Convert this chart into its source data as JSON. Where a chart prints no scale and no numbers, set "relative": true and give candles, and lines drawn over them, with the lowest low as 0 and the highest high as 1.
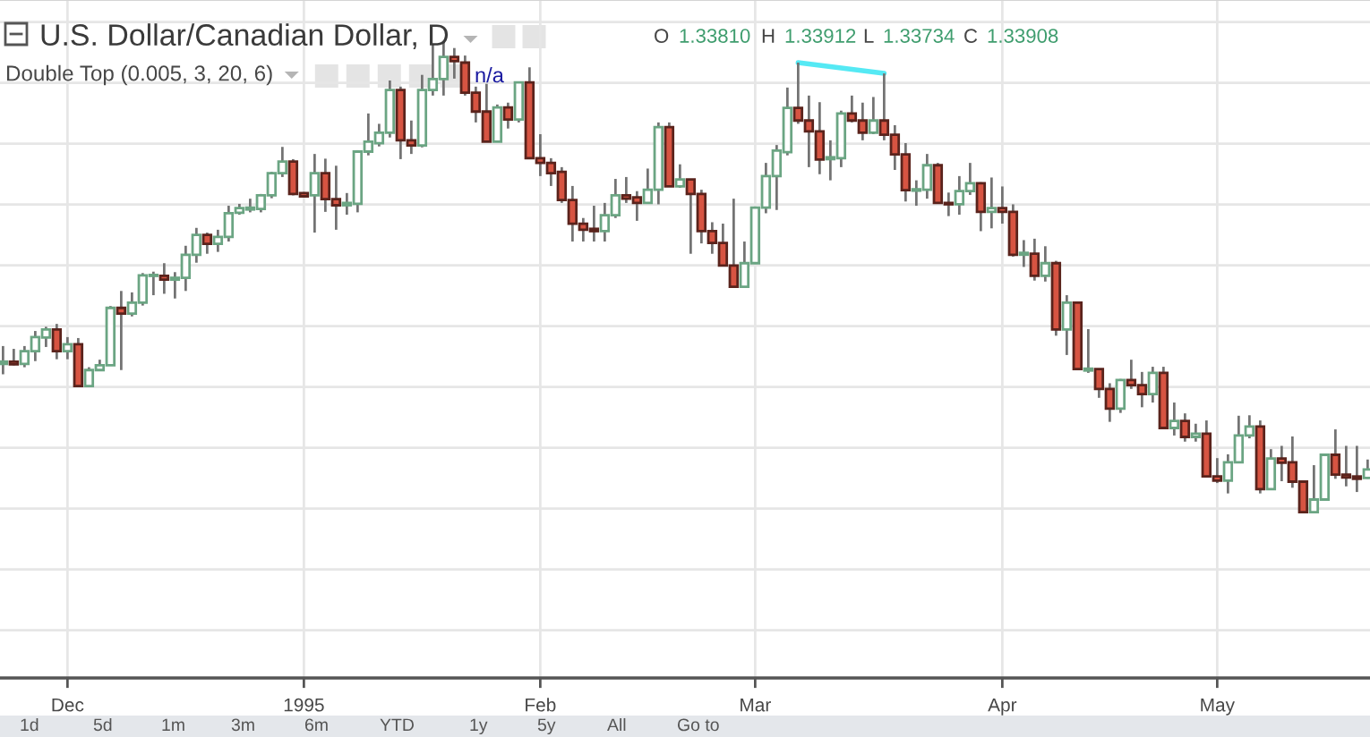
{
  "chart_data": {
    "type": "candlestick",
    "title": "U.S. Dollar/Canadian Dollar, D",
    "subtitle": "Double Top (0.005, 3, 20, 6)",
    "relative": true,
    "categories": [
      null,
      null,
      null,
      null,
      null,
      null,
      "Dec",
      null,
      null,
      null,
      null,
      null,
      null,
      null,
      null,
      null,
      null,
      null,
      null,
      null,
      null,
      null,
      null,
      null,
      null,
      null,
      null,
      null,
      "1995",
      null,
      null,
      null,
      null,
      null,
      null,
      null,
      null,
      null,
      null,
      null,
      null,
      null,
      null,
      null,
      null,
      null,
      null,
      null,
      null,
      null,
      "Feb",
      null,
      null,
      null,
      null,
      null,
      null,
      null,
      null,
      null,
      null,
      null,
      null,
      null,
      null,
      null,
      null,
      null,
      null,
      null,
      "Mar",
      null,
      null,
      null,
      null,
      null,
      null,
      null,
      null,
      null,
      null,
      null,
      null,
      null,
      null,
      null,
      null,
      null,
      null,
      null,
      null,
      null,
      null,
      "Apr",
      null,
      null,
      null,
      null,
      null,
      null,
      null,
      null,
      null,
      null,
      null,
      null,
      null,
      null,
      null,
      null,
      null,
      null,
      null,
      "May",
      null,
      null,
      null,
      null,
      null,
      null,
      null,
      null,
      null,
      null,
      null,
      null,
      null,
      null
    ],
    "ohlc": [
      [
        0.315,
        0.353,
        0.293,
        0.32
      ],
      [
        0.32,
        0.347,
        0.312,
        0.314
      ],
      [
        0.315,
        0.353,
        0.308,
        0.342
      ],
      [
        0.342,
        0.385,
        0.321,
        0.372
      ],
      [
        0.371,
        0.394,
        0.351,
        0.388
      ],
      [
        0.388,
        0.4,
        0.325,
        0.342
      ],
      [
        0.342,
        0.372,
        0.325,
        0.357
      ],
      [
        0.357,
        0.37,
        0.267,
        0.268
      ],
      [
        0.268,
        0.308,
        0.268,
        0.302
      ],
      [
        0.302,
        0.324,
        0.3,
        0.312
      ],
      [
        0.312,
        0.438,
        0.312,
        0.434
      ],
      [
        0.434,
        0.47,
        0.302,
        0.422
      ],
      [
        0.422,
        0.467,
        0.416,
        0.445
      ],
      [
        0.445,
        0.508,
        0.439,
        0.503
      ],
      [
        0.502,
        0.511,
        0.461,
        0.504
      ],
      [
        0.502,
        0.529,
        0.464,
        0.494
      ],
      [
        0.494,
        0.51,
        0.454,
        0.498
      ],
      [
        0.498,
        0.566,
        0.47,
        0.547
      ],
      [
        0.547,
        0.604,
        0.53,
        0.589
      ],
      [
        0.589,
        0.594,
        0.549,
        0.57
      ],
      [
        0.57,
        0.6,
        0.553,
        0.585
      ],
      [
        0.585,
        0.651,
        0.575,
        0.635
      ],
      [
        0.636,
        0.655,
        0.632,
        0.646
      ],
      [
        0.643,
        0.666,
        0.637,
        0.647
      ],
      [
        0.644,
        0.676,
        0.637,
        0.673
      ],
      [
        0.673,
        0.723,
        0.667,
        0.72
      ],
      [
        0.72,
        0.776,
        0.712,
        0.745
      ],
      [
        0.745,
        0.75,
        0.673,
        0.676
      ],
      [
        0.678,
        0.68,
        0.67,
        0.671
      ],
      [
        0.673,
        0.761,
        0.594,
        0.72
      ],
      [
        0.72,
        0.751,
        0.638,
        0.665
      ],
      [
        0.665,
        0.736,
        0.6,
        0.652
      ],
      [
        0.652,
        0.678,
        0.632,
        0.657
      ],
      [
        0.655,
        0.769,
        0.637,
        0.766
      ],
      [
        0.766,
        0.847,
        0.758,
        0.787
      ],
      [
        0.784,
        0.825,
        0.777,
        0.806
      ],
      [
        0.806,
        0.917,
        0.796,
        0.897
      ],
      [
        0.897,
        0.904,
        0.75,
        0.79
      ],
      [
        0.79,
        0.832,
        0.761,
        0.779
      ],
      [
        0.779,
        0.929,
        0.775,
        0.897
      ],
      [
        0.897,
        0.993,
        0.885,
        0.92
      ],
      [
        0.92,
        1,
        0.885,
        0.967
      ],
      [
        0.967,
        0.986,
        0.921,
        0.958
      ],
      [
        0.955,
        0.97,
        0.885,
        0.891
      ],
      [
        0.891,
        0.904,
        0.828,
        0.851
      ],
      [
        0.851,
        0.91,
        0.787,
        0.787
      ],
      [
        0.787,
        0.866,
        0.787,
        0.86
      ],
      [
        0.86,
        0.87,
        0.815,
        0.834
      ],
      [
        0.834,
        0.913,
        0.828,
        0.913
      ],
      [
        0.913,
        0.945,
        0.752,
        0.752
      ],
      [
        0.752,
        0.803,
        0.714,
        0.742
      ],
      [
        0.742,
        0.752,
        0.693,
        0.72
      ],
      [
        0.723,
        0.733,
        0.657,
        0.663
      ],
      [
        0.663,
        0.693,
        0.575,
        0.613
      ],
      [
        0.613,
        0.625,
        0.575,
        0.6
      ],
      [
        0.602,
        0.651,
        0.575,
        0.597
      ],
      [
        0.597,
        0.657,
        0.575,
        0.631
      ],
      [
        0.631,
        0.708,
        0.625,
        0.673
      ],
      [
        0.673,
        0.712,
        0.657,
        0.666
      ],
      [
        0.669,
        0.682,
        0.619,
        0.657
      ],
      [
        0.657,
        0.73,
        0.655,
        0.685
      ],
      [
        0.685,
        0.828,
        0.654,
        0.818
      ],
      [
        0.818,
        0.828,
        0.692,
        0.692
      ],
      [
        0.692,
        0.739,
        0.689,
        0.707
      ],
      [
        0.707,
        0.707,
        0.549,
        0.676
      ],
      [
        0.676,
        0.685,
        0.571,
        0.597
      ],
      [
        0.597,
        0.616,
        0.549,
        0.572
      ],
      [
        0.572,
        0.613,
        0.524,
        0.524
      ],
      [
        0.524,
        0.666,
        0.479,
        0.479
      ],
      [
        0.479,
        0.575,
        0.479,
        0.529
      ],
      [
        0.529,
        0.647,
        0.529,
        0.647
      ],
      [
        0.647,
        0.742,
        0.635,
        0.714
      ],
      [
        0.714,
        0.78,
        0.642,
        0.768
      ],
      [
        0.765,
        0.902,
        0.758,
        0.859
      ],
      [
        0.859,
        0.955,
        0.825,
        0.832
      ],
      [
        0.832,
        0.885,
        0.733,
        0.809
      ],
      [
        0.809,
        0.871,
        0.718,
        0.749
      ],
      [
        0.75,
        0.79,
        0.705,
        0.754
      ],
      [
        0.752,
        0.853,
        0.733,
        0.847
      ],
      [
        0.847,
        0.885,
        0.828,
        0.832
      ],
      [
        0.832,
        0.87,
        0.79,
        0.806
      ],
      [
        0.806,
        0.882,
        0.803,
        0.832
      ],
      [
        0.832,
        0.932,
        0.79,
        0.802
      ],
      [
        0.802,
        0.822,
        0.727,
        0.76
      ],
      [
        0.76,
        0.784,
        0.66,
        0.684
      ],
      [
        0.683,
        0.705,
        0.651,
        0.686
      ],
      [
        0.685,
        0.761,
        0.666,
        0.737
      ],
      [
        0.737,
        0.742,
        0.657,
        0.657
      ],
      [
        0.657,
        0.679,
        0.629,
        0.654
      ],
      [
        0.654,
        0.714,
        0.632,
        0.682
      ],
      [
        0.682,
        0.742,
        0.674,
        0.699
      ],
      [
        0.699,
        0.701,
        0.597,
        0.638
      ],
      [
        0.638,
        0.711,
        0.603,
        0.646
      ],
      [
        0.646,
        0.692,
        0.613,
        0.638
      ],
      [
        0.638,
        0.654,
        0.543,
        0.547
      ],
      [
        0.547,
        0.578,
        0.521,
        0.551
      ],
      [
        0.549,
        0.581,
        0.492,
        0.502
      ],
      [
        0.502,
        0.565,
        0.49,
        0.529
      ],
      [
        0.529,
        0.534,
        0.375,
        0.388
      ],
      [
        0.388,
        0.461,
        0.334,
        0.445
      ],
      [
        0.445,
        0.445,
        0.304,
        0.304
      ],
      [
        0.301,
        0.389,
        0.296,
        0.305
      ],
      [
        0.304,
        0.304,
        0.243,
        0.262
      ],
      [
        0.262,
        0.274,
        0.192,
        0.22
      ],
      [
        0.22,
        0.283,
        0.211,
        0.281
      ],
      [
        0.281,
        0.324,
        0.262,
        0.27
      ],
      [
        0.27,
        0.298,
        0.223,
        0.251
      ],
      [
        0.251,
        0.309,
        0.233,
        0.296
      ],
      [
        0.296,
        0.309,
        0.179,
        0.179
      ],
      [
        0.179,
        0.233,
        0.163,
        0.194
      ],
      [
        0.194,
        0.21,
        0.15,
        0.16
      ],
      [
        0.16,
        0.188,
        0.15,
        0.167
      ],
      [
        0.167,
        0.195,
        0.076,
        0.076
      ],
      [
        0.076,
        0.115,
        0.062,
        0.067
      ],
      [
        0.067,
        0.123,
        0.04,
        0.106
      ],
      [
        0.106,
        0.205,
        0.104,
        0.163
      ],
      [
        0.163,
        0.206,
        0.157,
        0.182
      ],
      [
        0.182,
        0.195,
        0.04,
        0.049
      ],
      [
        0.049,
        0.134,
        0.049,
        0.114
      ],
      [
        0.114,
        0.141,
        0.066,
        0.105
      ],
      [
        0.106,
        0.161,
        0.052,
        0.065
      ],
      [
        0.065,
        0.065,
        0,
        0
      ],
      [
        0,
        0.1,
        0,
        0.027
      ],
      [
        0.027,
        0.122,
        0.027,
        0.122
      ],
      [
        0.122,
        0.176,
        0.071,
        0.08
      ],
      [
        0.08,
        0.141,
        0.055,
        0.074
      ],
      [
        0.076,
        0.141,
        0.043,
        0.071
      ],
      [
        0.073,
        0.112,
        0.071,
        0.091
      ]
    ],
    "colors": [
      "#6ba583",
      "#d75442",
      "#6ba583",
      "#6ba583",
      "#6ba583",
      "#d75442",
      "#6ba583",
      "#d75442",
      "#6ba583",
      "#6ba583",
      "#6ba583",
      "#d75442",
      "#6ba583",
      "#6ba583",
      "#6ba583",
      "#d75442",
      "#6ba583",
      "#6ba583",
      "#6ba583",
      "#d75442",
      "#6ba583",
      "#6ba583",
      "#6ba583",
      "#6ba583",
      "#6ba583",
      "#6ba583",
      "#6ba583",
      "#d75442",
      "#d75442",
      "#6ba583",
      "#d75442",
      "#d75442",
      "#6ba583",
      "#6ba583",
      "#6ba583",
      "#6ba583",
      "#6ba583",
      "#d75442",
      "#d75442",
      "#6ba583",
      "#6ba583",
      "#6ba583",
      "#d75442",
      "#d75442",
      "#d75442",
      "#d75442",
      "#6ba583",
      "#d75442",
      "#6ba583",
      "#d75442",
      "#d75442",
      "#d75442",
      "#d75442",
      "#d75442",
      "#d75442",
      "#d75442",
      "#6ba583",
      "#6ba583",
      "#d75442",
      "#d75442",
      "#6ba583",
      "#6ba583",
      "#d75442",
      "#6ba583",
      "#d75442",
      "#d75442",
      "#d75442",
      "#d75442",
      "#d75442",
      "#6ba583",
      "#6ba583",
      "#6ba583",
      "#6ba583",
      "#6ba583",
      "#d75442",
      "#d75442",
      "#d75442",
      "#6ba583",
      "#6ba583",
      "#d75442",
      "#d75442",
      "#6ba583",
      "#d75442",
      "#d75442",
      "#d75442",
      "#6ba583",
      "#6ba583",
      "#d75442",
      "#d75442",
      "#6ba583",
      "#6ba583",
      "#d75442",
      "#6ba583",
      "#d75442",
      "#d75442",
      "#6ba583",
      "#d75442",
      "#6ba583",
      "#d75442",
      "#6ba583",
      "#d75442",
      "#6ba583",
      "#d75442",
      "#d75442",
      "#6ba583",
      "#d75442",
      "#d75442",
      "#6ba583",
      "#d75442",
      "#6ba583",
      "#d75442",
      "#6ba583",
      "#d75442",
      "#d75442",
      "#6ba583",
      "#6ba583",
      "#6ba583",
      "#d75442",
      "#6ba583",
      "#d75442",
      "#d75442",
      "#d75442",
      "#6ba583",
      "#6ba583",
      "#d75442",
      "#d75442",
      "#d75442",
      "#6ba583"
    ],
    "series": [
      {
        "type": "line",
        "color": "#55e9f4",
        "values": [
          null,
          null,
          null,
          null,
          null,
          null,
          null,
          null,
          null,
          null,
          null,
          null,
          null,
          null,
          null,
          null,
          null,
          null,
          null,
          null,
          null,
          null,
          null,
          null,
          null,
          null,
          null,
          null,
          null,
          null,
          null,
          null,
          null,
          null,
          null,
          null,
          null,
          null,
          null,
          null,
          null,
          null,
          null,
          null,
          null,
          null,
          null,
          null,
          null,
          null,
          null,
          null,
          null,
          null,
          null,
          null,
          null,
          null,
          null,
          null,
          null,
          null,
          null,
          null,
          null,
          null,
          null,
          null,
          null,
          null,
          null,
          null,
          null,
          null,
          0.955,
          null,
          null,
          null,
          null,
          null,
          null,
          null,
          0.932,
          null,
          null,
          null,
          null,
          null,
          null,
          null,
          null,
          null,
          null,
          null,
          null,
          null,
          null,
          null,
          null,
          null,
          null,
          null,
          null,
          null,
          null,
          null,
          null,
          null,
          null,
          null,
          null,
          null,
          null,
          null,
          null,
          null,
          null,
          null,
          null,
          null,
          null,
          null,
          null,
          null,
          null,
          null,
          null,
          null
        ]
      }
    ],
    "grid": true,
    "tick_labels": "x",
    "annotations": [
      "O 1.33810",
      "H 1.33912",
      "L 1.33734",
      "C 1.33908",
      "n/a",
      "1d",
      "5d",
      "1m",
      "3m",
      "6m",
      "YTD",
      "1y",
      "5y",
      "All",
      "Go to"
    ]
  }
}
